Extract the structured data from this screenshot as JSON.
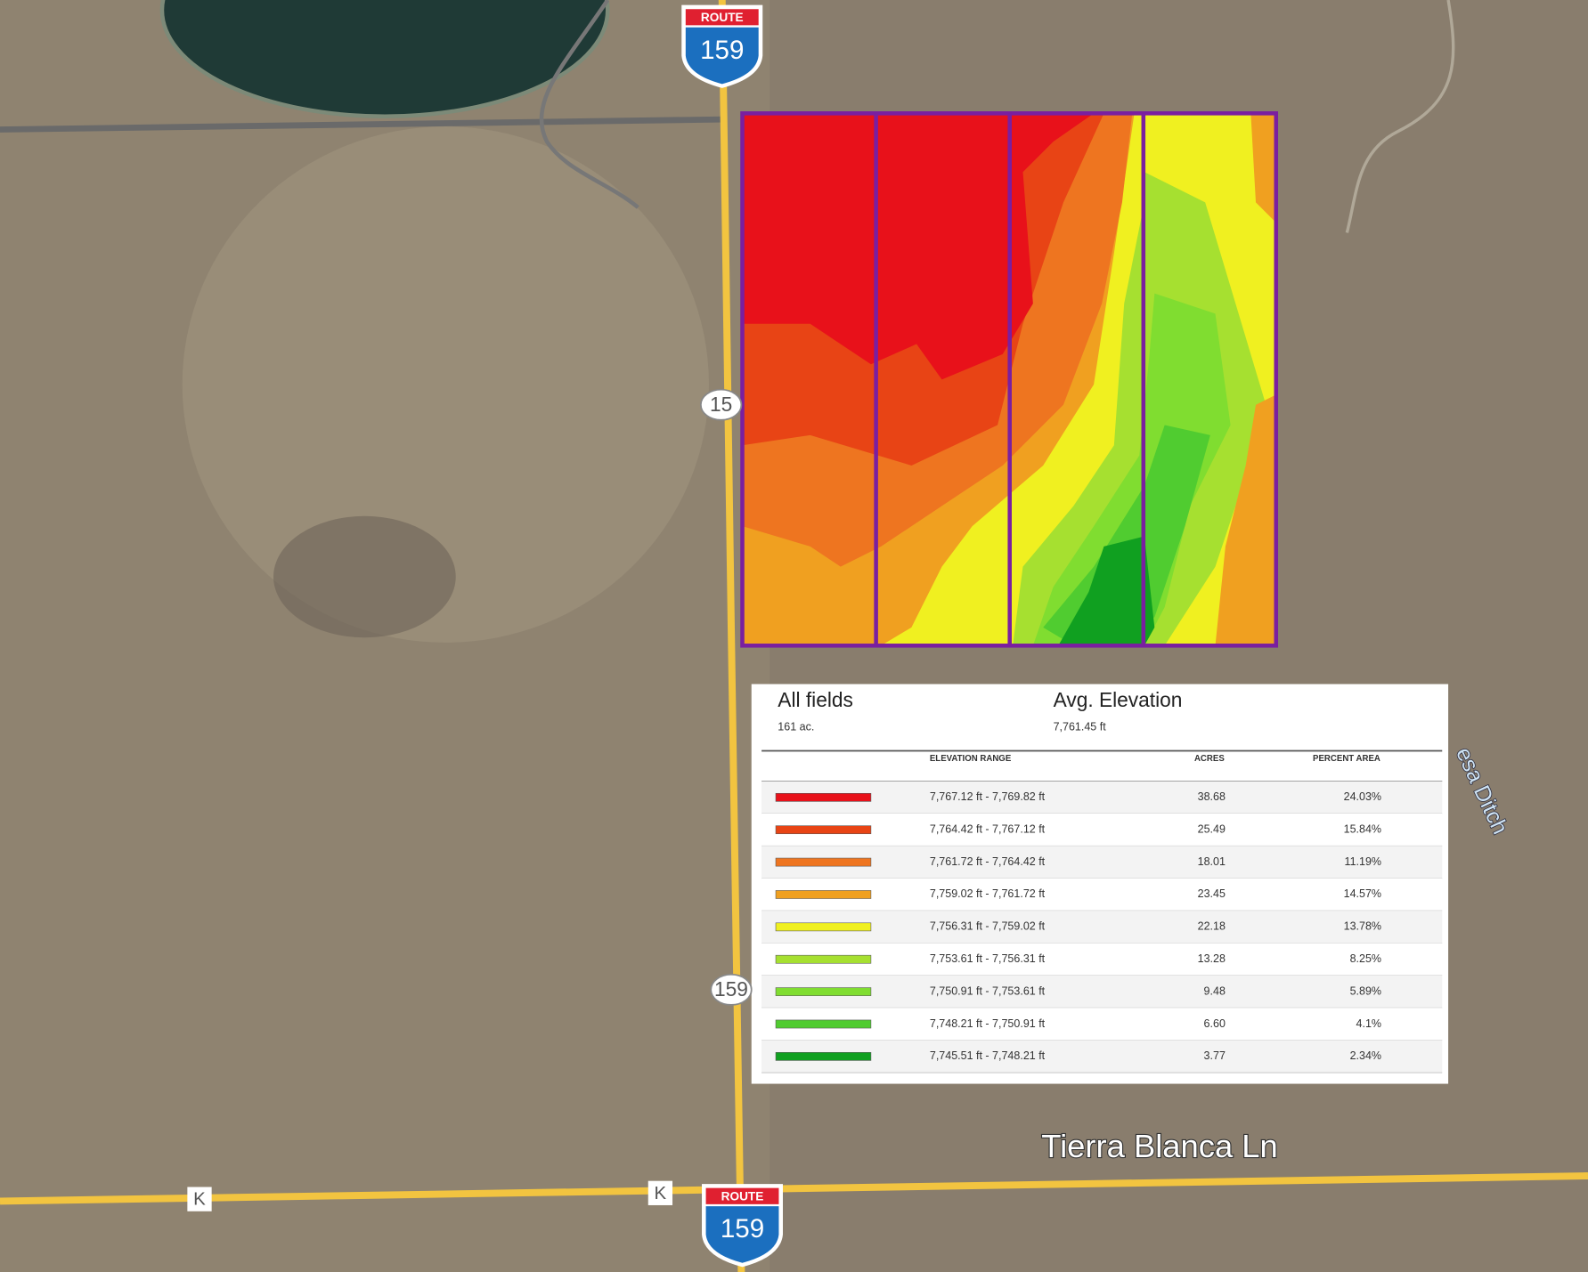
{
  "map": {
    "route_shields": [
      {
        "label": "ROUTE",
        "number": "159"
      },
      {
        "label": "ROUTE",
        "number": "159"
      }
    ],
    "route_markers": [
      "15",
      "159"
    ],
    "road_markers": [
      "K",
      "K"
    ],
    "street_label": "Tierra Blanca Ln",
    "waterway_label": "esa Ditch"
  },
  "summary": {
    "field_label": "All fields",
    "field_area": "161 ac.",
    "metric_label": "Avg. Elevation",
    "metric_value": "7,761.45 ft"
  },
  "table": {
    "headers": [
      "ELEVATION RANGE",
      "ACRES",
      "PERCENT AREA"
    ],
    "rows": [
      {
        "color": "#e8111a",
        "range": "7,767.12 ft - 7,769.82 ft",
        "acres": "38.68",
        "percent": "24.03%"
      },
      {
        "color": "#e84415",
        "range": "7,764.42 ft - 7,767.12 ft",
        "acres": "25.49",
        "percent": "15.84%"
      },
      {
        "color": "#ee7520",
        "range": "7,761.72 ft - 7,764.42 ft",
        "acres": "18.01",
        "percent": "11.19%"
      },
      {
        "color": "#f0a020",
        "range": "7,759.02 ft - 7,761.72 ft",
        "acres": "23.45",
        "percent": "14.57%"
      },
      {
        "color": "#f0f020",
        "range": "7,756.31 ft - 7,759.02 ft",
        "acres": "22.18",
        "percent": "13.78%"
      },
      {
        "color": "#a6e030",
        "range": "7,753.61 ft - 7,756.31 ft",
        "acres": "13.28",
        "percent": "8.25%"
      },
      {
        "color": "#80dd30",
        "range": "7,750.91 ft - 7,753.61 ft",
        "acres": "9.48",
        "percent": "5.89%"
      },
      {
        "color": "#50cc30",
        "range": "7,748.21 ft - 7,750.91 ft",
        "acres": "6.60",
        "percent": "4.1%"
      },
      {
        "color": "#10a020",
        "range": "7,745.51 ft - 7,748.21 ft",
        "acres": "3.77",
        "percent": "2.34%"
      }
    ]
  }
}
